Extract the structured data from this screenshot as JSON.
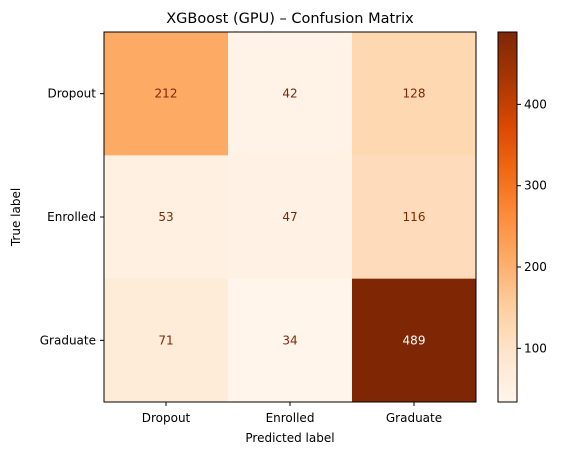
{
  "chart_data": {
    "type": "heatmap",
    "title": "XGBoost (GPU) – Confusion Matrix",
    "xlabel": "Predicted label",
    "ylabel": "True label",
    "x_categories": [
      "Dropout",
      "Enrolled",
      "Graduate"
    ],
    "y_categories": [
      "Dropout",
      "Enrolled",
      "Graduate"
    ],
    "values": [
      [
        212,
        42,
        128
      ],
      [
        53,
        47,
        116
      ],
      [
        71,
        34,
        489
      ]
    ],
    "colormap": "Oranges",
    "color_range": [
      34,
      489
    ],
    "colorbar_ticks": [
      100,
      200,
      300,
      400
    ]
  },
  "colors": {
    "dark_text": "#7f2704",
    "light_text": "#ffffff"
  }
}
